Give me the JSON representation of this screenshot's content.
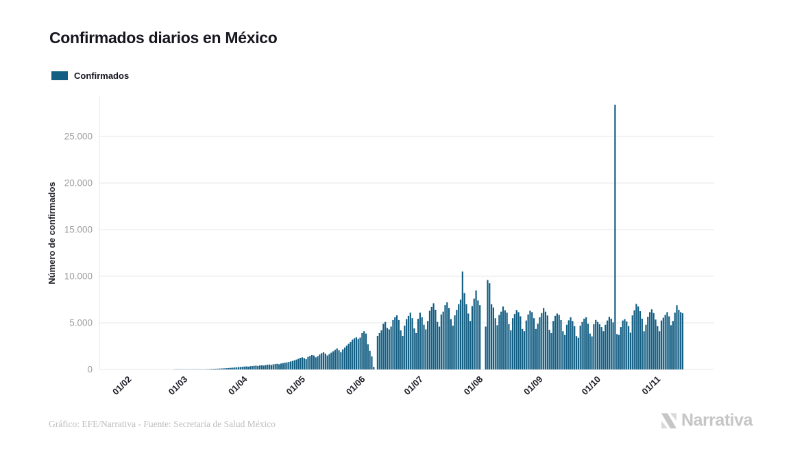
{
  "header": {
    "title": "Confirmados diarios en México"
  },
  "legend": {
    "items": [
      {
        "label": "Confirmados",
        "color": "#135E83"
      }
    ]
  },
  "chart_data": {
    "type": "bar",
    "title": "Confirmados diarios en México",
    "xlabel": "",
    "ylabel": "Número de confirmados",
    "legend": [
      "Confirmados"
    ],
    "legend_position": "top-left",
    "grid": "horizontal",
    "bar_color": "#135E83",
    "gridline_color": "#e7e7e7",
    "tick_label_color": "#9d9d9d",
    "x_label_color": "#1c1c26",
    "ylim": [
      0,
      28400
    ],
    "y_ticks": [
      {
        "value": 0,
        "label": "0"
      },
      {
        "value": 5000,
        "label": "5.000"
      },
      {
        "value": 10000,
        "label": "10.000"
      },
      {
        "value": 15000,
        "label": "15.000"
      },
      {
        "value": 20000,
        "label": "20.000"
      },
      {
        "value": 25000,
        "label": "25.000"
      }
    ],
    "x_ticks": [
      {
        "index": 0,
        "label": "01/02"
      },
      {
        "index": 29,
        "label": "01/03"
      },
      {
        "index": 60,
        "label": "01/04"
      },
      {
        "index": 90,
        "label": "01/05"
      },
      {
        "index": 121,
        "label": "01/06"
      },
      {
        "index": 151,
        "label": "01/07"
      },
      {
        "index": 182,
        "label": "01/08"
      },
      {
        "index": 213,
        "label": "01/09"
      },
      {
        "index": 243,
        "label": "01/10"
      },
      {
        "index": 274,
        "label": "01/11"
      }
    ],
    "values": [
      0,
      0,
      0,
      0,
      0,
      0,
      0,
      0,
      0,
      0,
      0,
      0,
      0,
      0,
      0,
      0,
      0,
      0,
      0,
      0,
      0,
      0,
      0,
      0,
      1,
      1,
      2,
      2,
      3,
      4,
      5,
      5,
      6,
      7,
      8,
      10,
      12,
      15,
      18,
      25,
      30,
      38,
      45,
      55,
      65,
      75,
      85,
      95,
      110,
      120,
      130,
      145,
      160,
      175,
      190,
      210,
      230,
      250,
      270,
      290,
      310,
      330,
      300,
      345,
      370,
      390,
      410,
      380,
      430,
      450,
      420,
      470,
      500,
      530,
      480,
      550,
      580,
      610,
      560,
      640,
      680,
      720,
      760,
      800,
      860,
      920,
      990,
      1060,
      1150,
      1250,
      1300,
      1220,
      1100,
      1350,
      1450,
      1550,
      1500,
      1300,
      1420,
      1600,
      1750,
      1850,
      1700,
      1500,
      1650,
      1800,
      1950,
      2100,
      2250,
      2050,
      1850,
      2150,
      2350,
      2550,
      2750,
      2950,
      3200,
      3350,
      3450,
      3270,
      3420,
      3900,
      4100,
      3850,
      2700,
      2000,
      1400,
      280,
      0,
      3600,
      3900,
      4200,
      4900,
      5100,
      4450,
      4300,
      4600,
      5300,
      5600,
      5800,
      5300,
      4200,
      3600,
      4700,
      5400,
      5750,
      6100,
      5500,
      4400,
      3900,
      5430,
      6100,
      5600,
      4800,
      4300,
      5200,
      6300,
      6700,
      7100,
      6400,
      5100,
      4600,
      5900,
      6200,
      6900,
      7200,
      6600,
      5400,
      4700,
      5800,
      6400,
      7000,
      7500,
      10500,
      8200,
      7000,
      6000,
      5200,
      6800,
      7600,
      8480,
      7400,
      6900,
      0,
      0,
      4600,
      9600,
      9250,
      7000,
      6650,
      5500,
      4750,
      5850,
      6200,
      6750,
      6350,
      6100,
      4850,
      4200,
      5500,
      5950,
      6380,
      6150,
      5700,
      4350,
      4100,
      5250,
      5900,
      6300,
      6150,
      5500,
      4350,
      4900,
      5600,
      6050,
      6600,
      6200,
      5790,
      4250,
      3900,
      5200,
      5750,
      6000,
      5850,
      5300,
      4100,
      3700,
      4800,
      5270,
      5600,
      5200,
      4650,
      3580,
      3400,
      4700,
      5100,
      5450,
      5600,
      4900,
      3850,
      3550,
      4850,
      5310,
      5100,
      4850,
      4550,
      4100,
      4800,
      5250,
      5650,
      5450,
      5050,
      28400,
      3800,
      3700,
      4550,
      5250,
      5400,
      5150,
      4650,
      3950,
      5800,
      6350,
      7030,
      6750,
      6250,
      5450,
      4100,
      4800,
      5650,
      6150,
      6450,
      6050,
      5350,
      4650,
      4100,
      5250,
      5550,
      5850,
      6150,
      5700,
      4750,
      5200,
      6100,
      6890,
      6400,
      6150,
      6030
    ],
    "peak_value": 28400,
    "peak_near_label": "01/10"
  },
  "footer": {
    "credit": "Gráfico: EFE/Narrativa - Fuente: Secretaría de Salud México"
  },
  "brand": {
    "name": "Narrativa",
    "color": "#c6c6c6"
  }
}
